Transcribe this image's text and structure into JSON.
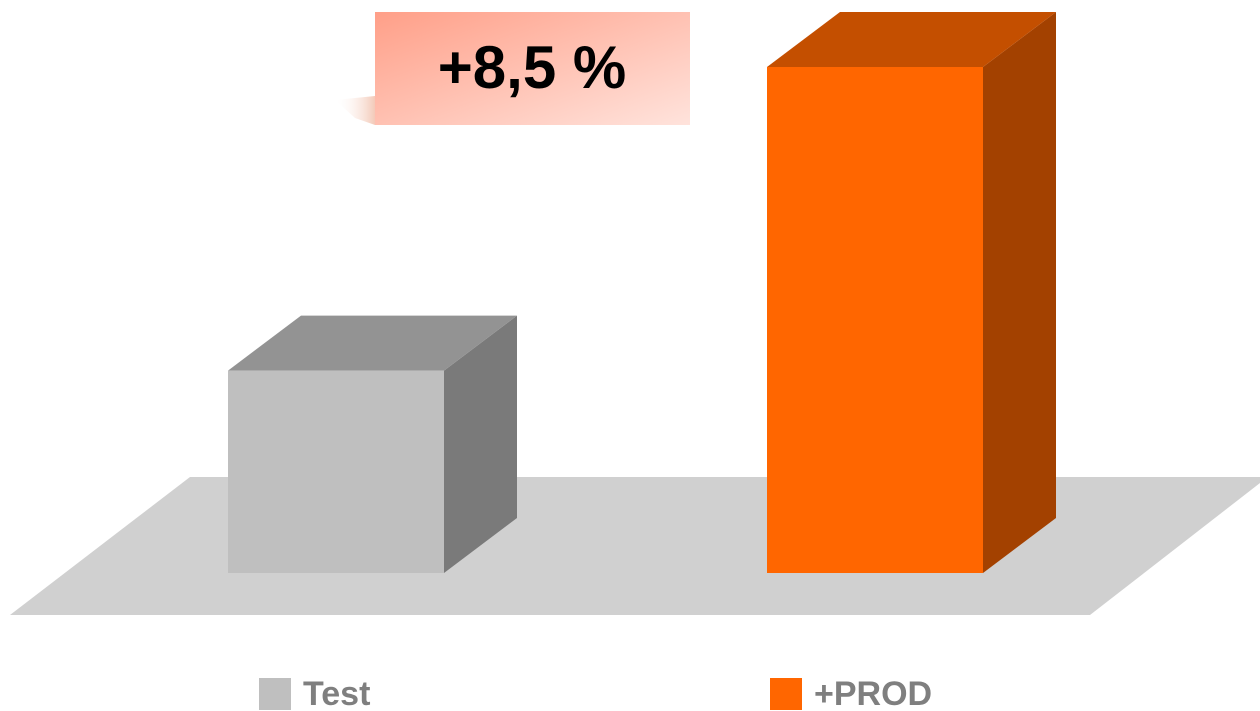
{
  "chart_data": {
    "type": "bar",
    "annotation": "+8,5 %",
    "series": [
      {
        "name": "Test",
        "color": "#bfbfbf",
        "values": [
          40
        ]
      },
      {
        "name": "+PROD",
        "color": "#ff6600",
        "values": [
          100
        ]
      }
    ],
    "ylim": [
      0,
      100
    ],
    "legend": "bottom"
  }
}
